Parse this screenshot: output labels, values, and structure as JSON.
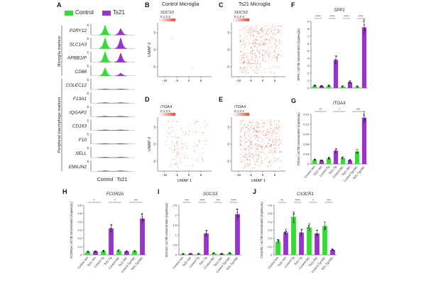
{
  "colors": {
    "control": "#33dd33",
    "ts21": "#9933cc",
    "heat": "#e8442a"
  },
  "panelA": {
    "letter": "A",
    "legend_control": "Control",
    "legend_ts21": "Ts21",
    "group_microglia": "Microglia markers",
    "group_peripheral": "Peripheral macrophage markers",
    "genes": [
      "P2RY12",
      "SLC1A3",
      "APBB1IP",
      "CD86",
      "COLEC12",
      "F13A1",
      "IQGAP2",
      "CD163",
      "F10",
      "SELL",
      "EMILIN2"
    ],
    "tick_label": "5",
    "x_control": "Control",
    "x_ts21": "Ts21"
  },
  "panelB": {
    "letter": "B",
    "title": "Control Microglia",
    "gene": "SOCS3",
    "scale": "0 1 2 3",
    "ylabel": "UMAP 2",
    "xticks": [
      "-10",
      "-5",
      "0",
      "5"
    ],
    "yticks": [
      "5",
      "0",
      "-5"
    ]
  },
  "panelC": {
    "letter": "C",
    "title": "Ts21 Microglia",
    "gene": "SOCS3",
    "scale": "0 1 2 3",
    "xticks": [
      "-10",
      "-5",
      "0",
      "5"
    ],
    "yticks": [
      "5",
      "0",
      "-5"
    ]
  },
  "panelD": {
    "letter": "D",
    "gene": "ITGAX",
    "scale": "0 1 2 3",
    "ylabel": "UMAP 2",
    "xlabel": "UMAP 1",
    "xticks": [
      "-10",
      "-5",
      "0",
      "5"
    ],
    "yticks": [
      "5",
      "0",
      "-5"
    ]
  },
  "panelE": {
    "letter": "E",
    "gene": "ITGAX",
    "scale": "0 1 2 3",
    "xlabel": "UMAP 1",
    "xticks": [
      "-10",
      "-5",
      "0",
      "5"
    ],
    "yticks": [
      "5",
      "0",
      "-5"
    ]
  },
  "panelF": {
    "letter": "F",
    "title": "SPP1",
    "ylabel": "SPP1 / ACTB concentration (copies/µL)",
    "sig": [
      "****",
      "****",
      "****",
      "****"
    ]
  },
  "panelG": {
    "letter": "G",
    "title": "ITGAX",
    "ylabel": "ITGAX / ACTB concentration (copies/µL)",
    "sig": [
      "**",
      "*",
      "***"
    ]
  },
  "panelH": {
    "letter": "H",
    "title": "FCGR2A",
    "ylabel": "FCGR2A / ACTB concentration (copies/µL)",
    "sig": [
      "*",
      "*",
      "***"
    ]
  },
  "panelI": {
    "letter": "I",
    "title": "SOCS3",
    "ylabel": "SOCS3 / ACTB concentration (copies/µL)",
    "sig": [
      "***",
      "****",
      "***",
      "****"
    ]
  },
  "panelJ": {
    "letter": "J",
    "title": "CX3CR1",
    "ylabel": "CX3CR1 / ACTB concentration (copies/µL)",
    "sig": [
      "**",
      "****",
      "*",
      "***"
    ]
  },
  "bar_categories": [
    "Control Veh",
    "Ts21 Veh",
    "Control Tg",
    "Ts21 Tg",
    "Control OIC",
    "Ts21 OIC",
    "Control Tg+OIC",
    "Ts21 Tg+OIC"
  ],
  "chart_data": [
    {
      "type": "bar",
      "title": "SPP1",
      "ylabel": "SPP1 / ACTB concentration (copies/µL)",
      "ylim": [
        0,
        9
      ],
      "yticks": [
        0,
        1,
        2,
        3,
        4,
        5,
        6,
        7,
        8,
        9
      ],
      "groups": [
        "control",
        "ts21",
        "control",
        "ts21",
        "control",
        "ts21",
        "control",
        "ts21"
      ],
      "values": [
        0.3,
        0.25,
        0.3,
        3.8,
        0.2,
        0.8,
        0.2,
        8.2
      ]
    },
    {
      "type": "bar",
      "title": "ITGAX",
      "ylabel": "ITGAX / ACTB concentration (copies/µL)",
      "ylim": [
        0,
        0.15
      ],
      "yticks": [
        0,
        0.03,
        0.06,
        0.09,
        0.12,
        0.15
      ],
      "groups": [
        "control",
        "ts21",
        "control",
        "ts21",
        "control",
        "ts21",
        "control",
        "ts21"
      ],
      "values": [
        0.012,
        0.01,
        0.017,
        0.04,
        0.018,
        0.011,
        0.038,
        0.14
      ]
    },
    {
      "type": "bar",
      "title": "FCGR2A",
      "ylabel": "FCGR2A / ACTB concentration (copies/µL)",
      "ylim": [
        0,
        0.6
      ],
      "yticks": [
        0,
        0.1,
        0.2,
        0.3,
        0.4,
        0.5,
        0.6
      ],
      "groups": [
        "control",
        "ts21",
        "control",
        "ts21",
        "control",
        "ts21",
        "control",
        "ts21"
      ],
      "values": [
        0.035,
        0.04,
        0.045,
        0.32,
        0.05,
        0.04,
        0.045,
        0.44
      ]
    },
    {
      "type": "bar",
      "title": "SOCS3",
      "ylabel": "SOCS3 / ACTB concentration (copies/µL)",
      "ylim": [
        0,
        2.5
      ],
      "yticks": [
        0,
        0.5,
        1.0,
        1.5,
        2.0,
        2.5
      ],
      "groups": [
        "control",
        "ts21",
        "control",
        "ts21",
        "control",
        "ts21",
        "control",
        "ts21"
      ],
      "values": [
        0.04,
        0.05,
        0.05,
        1.08,
        0.08,
        0.05,
        0.09,
        2.05
      ]
    },
    {
      "type": "bar",
      "title": "CX3CR1",
      "ylabel": "CX3CR1 / ACTB concentration (copies/µL)",
      "ylim": [
        0,
        0.6
      ],
      "yticks": [
        0,
        0.1,
        0.2,
        0.3,
        0.4,
        0.5,
        0.6
      ],
      "groups": [
        "control",
        "ts21",
        "control",
        "ts21",
        "control",
        "ts21",
        "control",
        "ts21"
      ],
      "values": [
        0.16,
        0.27,
        0.46,
        0.27,
        0.33,
        0.26,
        0.35,
        0.06
      ]
    }
  ]
}
